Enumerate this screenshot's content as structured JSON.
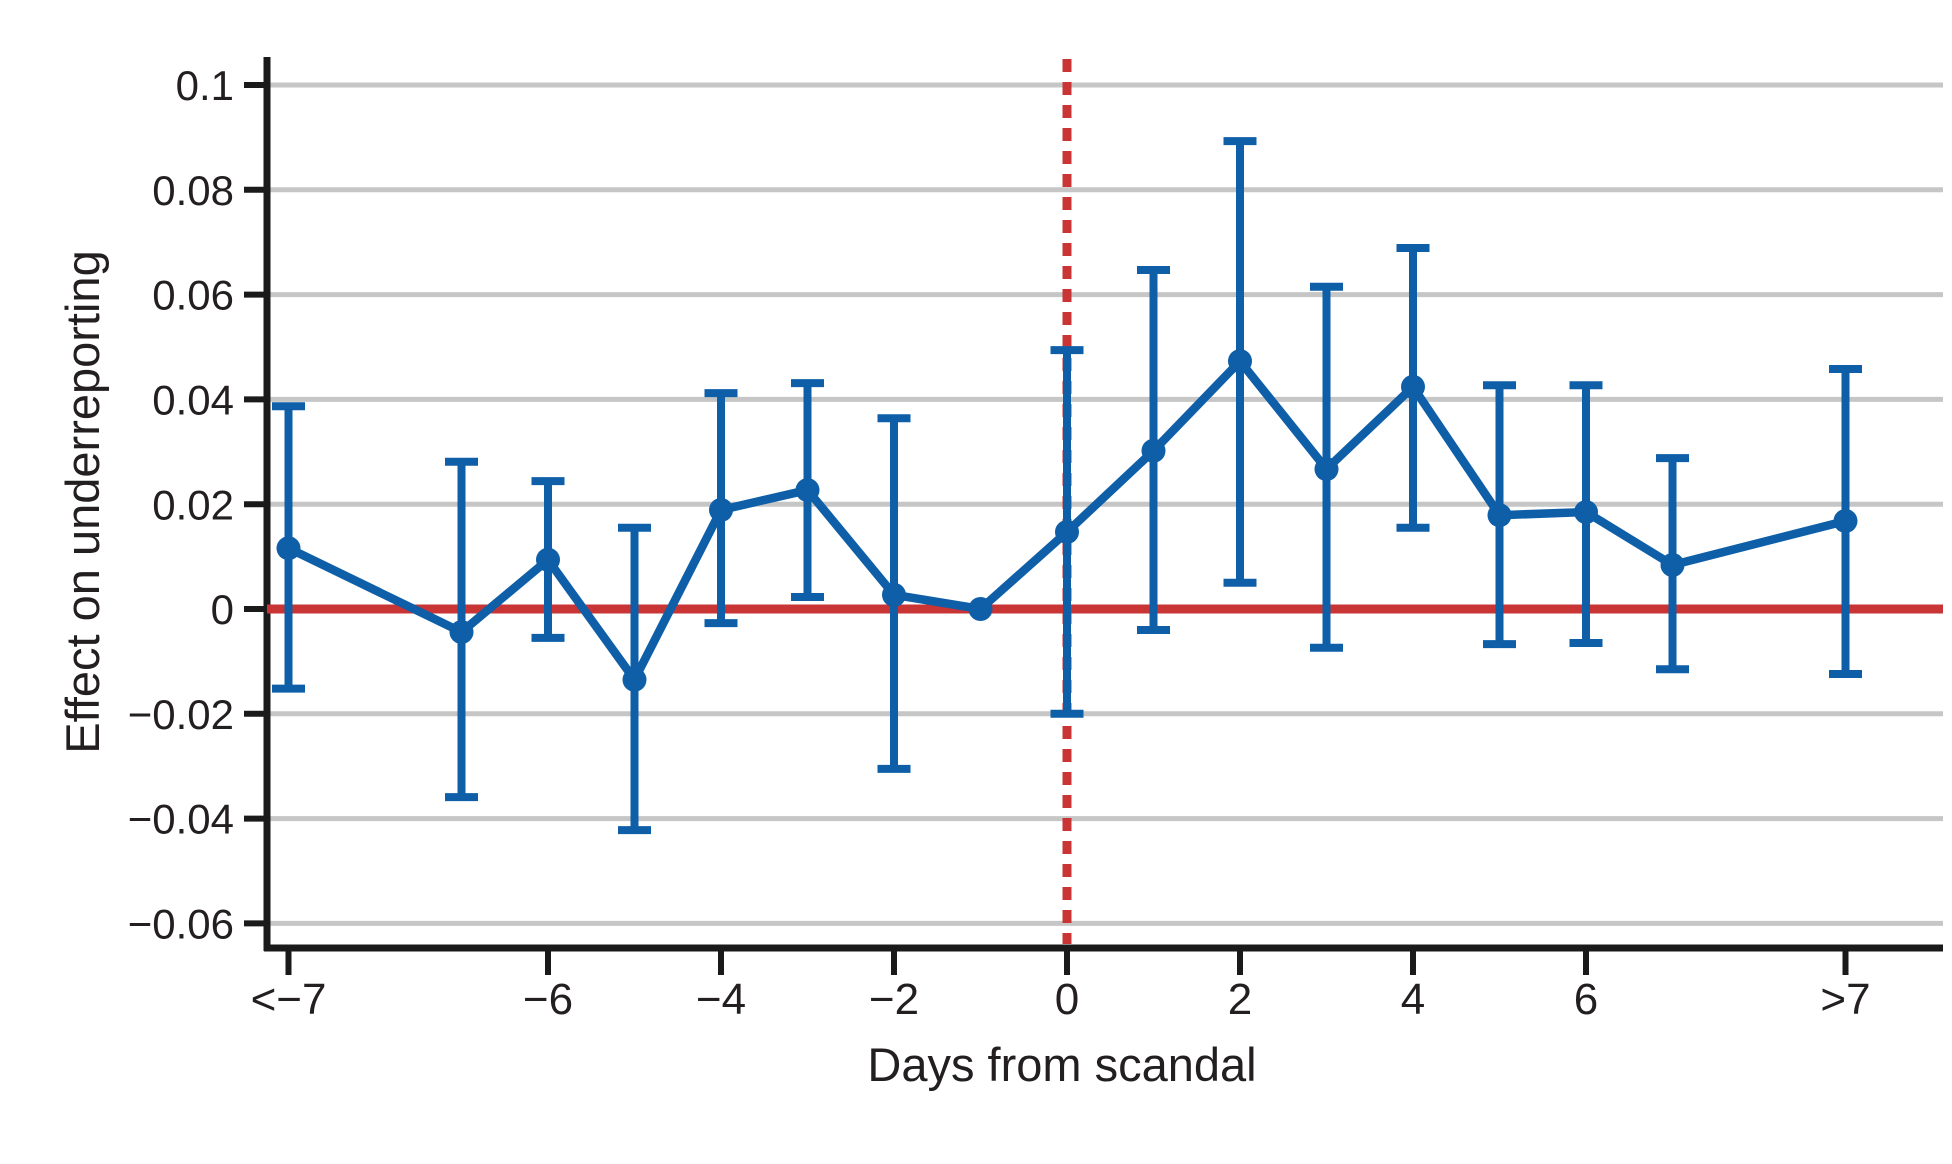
{
  "figure": {
    "xlabel": "Days from scandal",
    "ylabel": "Effect on underreporting"
  },
  "colors": {
    "series_blue": "#0e5fa8",
    "reference_red": "#c93434",
    "gridline_gray": "#c6c6c6",
    "axis_black": "#1a1a1a",
    "text_black": "#231f20"
  },
  "chart_data": {
    "type": "line",
    "subtype": "event-study point estimates with 95% confidence interval error bars",
    "title": "",
    "xlabel": "Days from scandal",
    "ylabel": "Effect on underreporting",
    "grid": "horizontal gridlines on",
    "legend": "none",
    "ylim": [
      -0.0655,
      0.1055
    ],
    "xlim_days": [
      -9.25,
      10.1
    ],
    "y_ticks": [
      0.1,
      0.08,
      0.06,
      0.04,
      0.02,
      0,
      -0.02,
      -0.04,
      -0.06
    ],
    "x_tick_labels": [
      "<−7",
      "−6",
      "−4",
      "−2",
      "0",
      "2",
      "4",
      "6",
      ">7"
    ],
    "x_tick_positions": [
      -9,
      -6,
      -4,
      -2,
      0,
      2,
      4,
      6,
      9
    ],
    "zero_reference_line_y": 0,
    "event_time_dashed_line_x": 0,
    "categories": [
      "<−7",
      "−7",
      "−6",
      "−5",
      "−4",
      "−3",
      "−2",
      "−1",
      "0",
      "1",
      "2",
      "3",
      "4",
      "5",
      "6",
      "7",
      ">7"
    ],
    "x_positions": [
      -9,
      -7,
      -6,
      -5,
      -4,
      -3,
      -2,
      -1,
      0,
      1,
      2,
      3,
      4,
      5,
      6,
      7,
      9
    ],
    "series": [
      {
        "name": "Point estimate",
        "values": [
          0.0116,
          -0.0044,
          0.0094,
          -0.0135,
          0.0189,
          0.0227,
          0.0027,
          0.0,
          0.0147,
          0.0302,
          0.0473,
          0.0267,
          0.0424,
          0.0179,
          0.0185,
          0.0084,
          0.0168
        ]
      },
      {
        "name": "95% CI lower bound",
        "values": [
          -0.0152,
          -0.0359,
          -0.0055,
          -0.0422,
          -0.0027,
          0.0023,
          -0.0305,
          null,
          -0.02,
          -0.004,
          0.005,
          -0.0074,
          0.0155,
          -0.0067,
          -0.0065,
          -0.0115,
          -0.0124
        ]
      },
      {
        "name": "95% CI upper bound",
        "values": [
          0.0387,
          0.0281,
          0.0244,
          0.0155,
          0.0412,
          0.0431,
          0.0364,
          null,
          0.0494,
          0.0647,
          0.0893,
          0.0615,
          0.0689,
          0.0427,
          0.0427,
          0.0288,
          0.0458
        ]
      }
    ],
    "notes": "Day −1 is the omitted reference period (estimate 0, no confidence interval drawn). End bins <−7 and >7 are plotted two day-widths beyond −7 and 7."
  }
}
